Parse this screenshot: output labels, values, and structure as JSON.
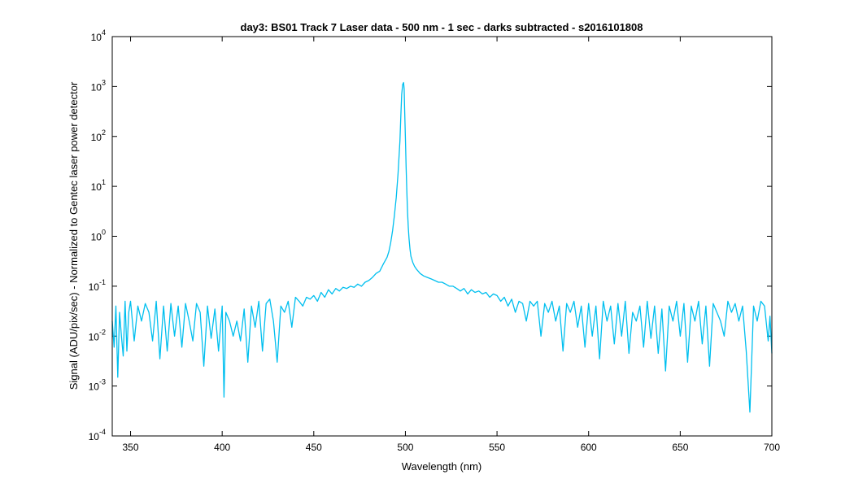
{
  "chart_data": {
    "type": "line",
    "title": "day3: BS01  Track 7 Laser data - 500 nm - 1 sec - darks subtracted - s2016101808",
    "xlabel": "Wavelength (nm)",
    "ylabel": "Signal (ADU/pix/sec) - Normalized to Gentec laser power detector",
    "xlim": [
      340,
      700
    ],
    "ylim": [
      0.0001,
      10000
    ],
    "yscale": "log",
    "xticks": [
      350,
      400,
      450,
      500,
      550,
      600,
      650,
      700
    ],
    "yticks": [
      {
        "base": "10",
        "exp": "-4",
        "value": 0.0001
      },
      {
        "base": "10",
        "exp": "-3",
        "value": 0.001
      },
      {
        "base": "10",
        "exp": "-2",
        "value": 0.01
      },
      {
        "base": "10",
        "exp": "-1",
        "value": 0.1
      },
      {
        "base": "10",
        "exp": "0",
        "value": 1
      },
      {
        "base": "10",
        "exp": "1",
        "value": 10
      },
      {
        "base": "10",
        "exp": "2",
        "value": 100
      },
      {
        "base": "10",
        "exp": "3",
        "value": 1000
      },
      {
        "base": "10",
        "exp": "4",
        "value": 10000
      }
    ],
    "grid": false,
    "colors": {
      "series": "#00bfef",
      "axes": "#000000",
      "background": "#ffffff"
    },
    "series": [
      {
        "x": [
          340,
          341,
          342,
          343,
          344,
          345,
          346,
          347,
          348,
          349,
          350,
          352,
          354,
          356,
          358,
          360,
          362,
          364,
          366,
          368,
          370,
          372,
          374,
          376,
          378,
          380,
          382,
          384,
          386,
          388,
          390,
          392,
          394,
          396,
          398,
          400,
          401,
          402,
          404,
          406,
          408,
          410,
          412,
          414,
          416,
          418,
          420,
          422,
          424,
          426,
          428,
          430,
          432,
          434,
          436,
          438,
          440,
          442,
          444,
          446,
          448,
          450,
          452,
          454,
          456,
          458,
          460,
          462,
          464,
          466,
          468,
          470,
          472,
          474,
          476,
          478,
          480,
          482,
          484,
          486,
          488,
          490,
          491,
          492,
          493,
          494,
          495,
          496,
          497,
          497.5,
          498,
          498.5,
          499,
          499.3,
          499.6,
          500,
          500.4,
          500.8,
          501.2,
          501.6,
          502,
          502.5,
          503,
          504,
          505,
          506,
          507,
          508,
          510,
          512,
          514,
          516,
          518,
          520,
          522,
          524,
          526,
          528,
          530,
          532,
          534,
          536,
          538,
          540,
          542,
          544,
          546,
          548,
          550,
          552,
          554,
          556,
          558,
          560,
          562,
          564,
          566,
          568,
          570,
          572,
          574,
          576,
          578,
          580,
          582,
          584,
          586,
          588,
          590,
          592,
          594,
          596,
          598,
          600,
          602,
          604,
          606,
          608,
          610,
          612,
          614,
          616,
          618,
          620,
          622,
          624,
          626,
          628,
          630,
          632,
          634,
          636,
          638,
          640,
          642,
          644,
          646,
          648,
          650,
          652,
          654,
          656,
          658,
          660,
          662,
          664,
          666,
          668,
          670,
          672,
          674,
          676,
          678,
          680,
          682,
          684,
          686,
          688,
          690,
          692,
          694,
          696,
          698,
          699,
          700
        ],
        "y": [
          0.02,
          0.006,
          0.04,
          0.0015,
          0.03,
          0.01,
          0.004,
          0.05,
          0.005,
          0.03,
          0.05,
          0.008,
          0.04,
          0.02,
          0.045,
          0.03,
          0.008,
          0.05,
          0.0035,
          0.04,
          0.005,
          0.045,
          0.01,
          0.04,
          0.006,
          0.045,
          0.02,
          0.008,
          0.045,
          0.03,
          0.0025,
          0.04,
          0.009,
          0.035,
          0.005,
          0.04,
          0.0006,
          0.03,
          0.02,
          0.01,
          0.02,
          0.008,
          0.035,
          0.003,
          0.04,
          0.015,
          0.05,
          0.005,
          0.045,
          0.055,
          0.02,
          0.003,
          0.04,
          0.03,
          0.05,
          0.015,
          0.06,
          0.05,
          0.04,
          0.06,
          0.055,
          0.065,
          0.05,
          0.075,
          0.06,
          0.085,
          0.07,
          0.09,
          0.08,
          0.095,
          0.09,
          0.1,
          0.095,
          0.11,
          0.1,
          0.12,
          0.13,
          0.15,
          0.18,
          0.2,
          0.28,
          0.38,
          0.5,
          0.75,
          1.3,
          2.6,
          6,
          18,
          80,
          250,
          700,
          1100,
          1200,
          900,
          350,
          100,
          25,
          8,
          3,
          1.5,
          0.9,
          0.55,
          0.4,
          0.3,
          0.25,
          0.22,
          0.2,
          0.18,
          0.16,
          0.15,
          0.14,
          0.13,
          0.12,
          0.12,
          0.11,
          0.1,
          0.1,
          0.09,
          0.08,
          0.09,
          0.07,
          0.085,
          0.075,
          0.08,
          0.07,
          0.075,
          0.06,
          0.07,
          0.065,
          0.05,
          0.06,
          0.04,
          0.055,
          0.03,
          0.05,
          0.045,
          0.02,
          0.05,
          0.04,
          0.05,
          0.01,
          0.045,
          0.03,
          0.05,
          0.02,
          0.04,
          0.005,
          0.045,
          0.03,
          0.05,
          0.015,
          0.04,
          0.006,
          0.045,
          0.01,
          0.04,
          0.0035,
          0.05,
          0.02,
          0.04,
          0.007,
          0.045,
          0.01,
          0.05,
          0.0045,
          0.03,
          0.02,
          0.04,
          0.006,
          0.05,
          0.009,
          0.04,
          0.0045,
          0.035,
          0.002,
          0.04,
          0.02,
          0.05,
          0.01,
          0.045,
          0.003,
          0.04,
          0.02,
          0.05,
          0.007,
          0.04,
          0.0025,
          0.045,
          0.03,
          0.02,
          0.01,
          0.05,
          0.03,
          0.045,
          0.02,
          0.04,
          0.005,
          0.0003,
          0.04,
          0.02,
          0.05,
          0.04,
          0.008,
          0.025,
          0.0045
        ]
      }
    ]
  }
}
